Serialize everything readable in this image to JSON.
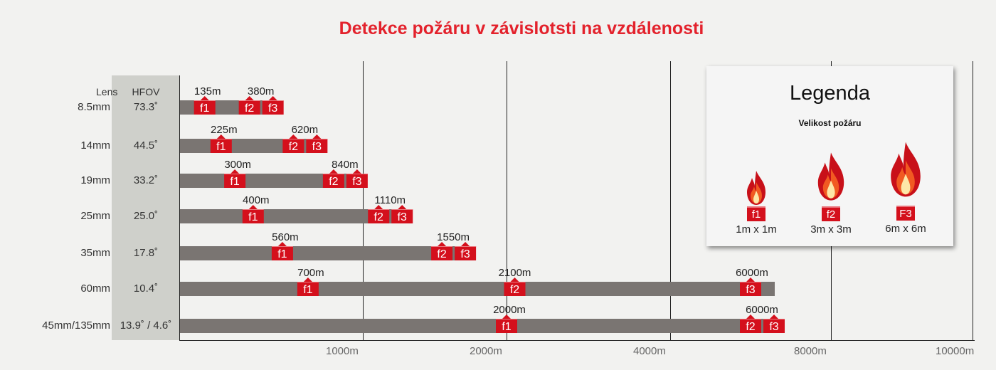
{
  "title": "Detekce požáru v závislotsti na vzdálenosti",
  "colors": {
    "title": "#e3222c",
    "marker": "#d4101c",
    "bar": "#7a7572",
    "hfov_band": "#cfd0cb"
  },
  "chart_data": {
    "type": "bar",
    "title": "Detekce požáru v závislotsti na vzdálenosti",
    "orientation": "horizontal",
    "column_headers": {
      "lens": "Lens",
      "hfov": "HFOV"
    },
    "x_ticks": [
      "1000m",
      "2000m",
      "4000m",
      "8000m",
      "10000m"
    ],
    "grid": true,
    "rows": [
      {
        "lens": "8.5mm",
        "hfov": "73.3˚",
        "f1": "135m",
        "f2": "380m",
        "f3": "",
        "f1_badge": "f1",
        "f2_badge": "f2",
        "f3_badge": "f3"
      },
      {
        "lens": "14mm",
        "hfov": "44.5˚",
        "f1": "225m",
        "f2": "620m",
        "f3": "",
        "f1_badge": "f1",
        "f2_badge": "f2",
        "f3_badge": "f3"
      },
      {
        "lens": "19mm",
        "hfov": "33.2˚",
        "f1": "300m",
        "f2": "840m",
        "f3": "",
        "f1_badge": "f1",
        "f2_badge": "f2",
        "f3_badge": "f3"
      },
      {
        "lens": "25mm",
        "hfov": "25.0˚",
        "f1": "400m",
        "f2": "1110m",
        "f3": "",
        "f1_badge": "f1",
        "f2_badge": "f2",
        "f3_badge": "f3"
      },
      {
        "lens": "35mm",
        "hfov": "17.8˚",
        "f1": "560m",
        "f2": "1550m",
        "f3": "",
        "f1_badge": "f1",
        "f2_badge": "f2",
        "f3_badge": "f3"
      },
      {
        "lens": "60mm",
        "hfov": "10.4˚",
        "f1": "700m",
        "f2": "2100m",
        "f3": "6000m",
        "f1_badge": "f1",
        "f2_badge": "f2",
        "f3_badge": "f3"
      },
      {
        "lens": "45mm/135mm",
        "hfov": "13.9˚ / 4.6˚",
        "f1": "2000m",
        "f2": "6000m",
        "f3": "",
        "f1_badge": "f1",
        "f2_badge": "f2",
        "f3_badge": "f3"
      }
    ]
  },
  "legend": {
    "title": "Legenda",
    "subtitle": "Velikost požáru",
    "items": [
      {
        "badge": "f1",
        "size": "1m x 1m"
      },
      {
        "badge": "f2",
        "size": "3m x 3m"
      },
      {
        "badge": "F3",
        "size": "6m x 6m"
      }
    ]
  }
}
